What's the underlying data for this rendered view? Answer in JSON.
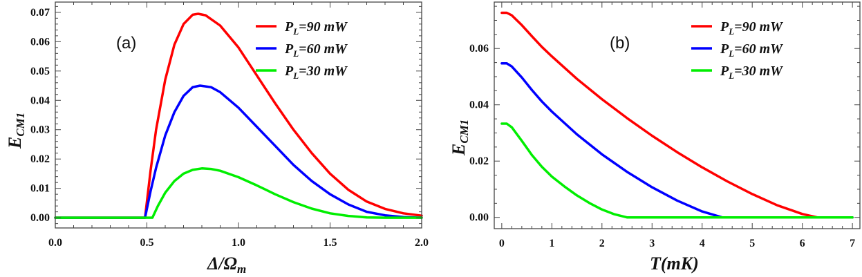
{
  "chart_data": [
    {
      "id": "a",
      "type": "line",
      "panel_label": "(a)",
      "xlabel": "Δ/Ω_m",
      "xlabel_main": "Δ/Ω",
      "xlabel_sub": "m",
      "ylabel": "E_CM1",
      "ylabel_main": "E",
      "ylabel_sub": "CM1",
      "xlim": [
        0,
        2.0
      ],
      "ylim": [
        -0.0035,
        0.0735
      ],
      "xticks": [
        0.0,
        0.5,
        1.0,
        1.5,
        2.0
      ],
      "xtick_labels": [
        "0.0",
        "0.5",
        "1.0",
        "1.5",
        "2.0"
      ],
      "yticks": [
        0.0,
        0.01,
        0.02,
        0.03,
        0.04,
        0.05,
        0.06,
        0.07
      ],
      "ytick_labels": [
        "0.00",
        "0.01",
        "0.02",
        "0.03",
        "0.04",
        "0.05",
        "0.06",
        "0.07"
      ],
      "grid": false,
      "legend_position": "upper right",
      "series": [
        {
          "name": "P_L=90 mW",
          "label_main": "P",
          "label_sub": "L",
          "label_rest": "=90 mW",
          "color": "#ff0000",
          "x": [
            0,
            0.49,
            0.52,
            0.55,
            0.6,
            0.65,
            0.7,
            0.75,
            0.78,
            0.82,
            0.9,
            1.0,
            1.1,
            1.2,
            1.3,
            1.4,
            1.5,
            1.6,
            1.7,
            1.8,
            1.9,
            2.0
          ],
          "y": [
            0,
            0,
            0.016,
            0.03,
            0.047,
            0.059,
            0.066,
            0.0692,
            0.0695,
            0.069,
            0.0655,
            0.058,
            0.0485,
            0.039,
            0.03,
            0.022,
            0.015,
            0.0095,
            0.0055,
            0.003,
            0.0015,
            0.0007
          ]
        },
        {
          "name": "P_L=60 mW",
          "label_main": "P",
          "label_sub": "L",
          "label_rest": "=60 mW",
          "color": "#0000ff",
          "x": [
            0,
            0.49,
            0.52,
            0.55,
            0.6,
            0.65,
            0.7,
            0.75,
            0.79,
            0.85,
            0.9,
            1.0,
            1.1,
            1.2,
            1.3,
            1.4,
            1.5,
            1.6,
            1.7,
            1.8,
            1.9,
            2.0
          ],
          "y": [
            0,
            0,
            0.009,
            0.017,
            0.028,
            0.036,
            0.0415,
            0.0445,
            0.045,
            0.0445,
            0.0428,
            0.0375,
            0.031,
            0.0245,
            0.018,
            0.0125,
            0.008,
            0.0045,
            0.002,
            0.0008,
            0.0002,
            0
          ]
        },
        {
          "name": "P_L=30 mW",
          "label_main": "P",
          "label_sub": "L",
          "label_rest": "=30 mW",
          "color": "#00ee00",
          "x": [
            0,
            0.53,
            0.56,
            0.6,
            0.65,
            0.7,
            0.75,
            0.8,
            0.85,
            0.9,
            1.0,
            1.1,
            1.2,
            1.3,
            1.4,
            1.5,
            1.6,
            1.7,
            1.8,
            1.9,
            2.0
          ],
          "y": [
            0,
            0,
            0.004,
            0.0085,
            0.0125,
            0.015,
            0.0163,
            0.0168,
            0.0166,
            0.016,
            0.0138,
            0.011,
            0.008,
            0.0053,
            0.0031,
            0.0015,
            0.0006,
            0.0001,
            0,
            0,
            0
          ]
        }
      ]
    },
    {
      "id": "b",
      "type": "line",
      "panel_label": "(b)",
      "xlabel": "T(mK)",
      "ylabel": "E_CM1",
      "ylabel_main": "E",
      "ylabel_sub": "CM1",
      "xlim": [
        -0.15,
        7.15
      ],
      "ylim": [
        -0.004,
        0.0765
      ],
      "xticks": [
        0,
        1,
        2,
        3,
        4,
        5,
        6,
        7
      ],
      "xtick_labels": [
        "0",
        "1",
        "2",
        "3",
        "4",
        "5",
        "6",
        "7"
      ],
      "yticks": [
        0.0,
        0.02,
        0.04,
        0.06
      ],
      "ytick_labels": [
        "0.00",
        "0.02",
        "0.04",
        "0.06"
      ],
      "grid": false,
      "legend_position": "upper right",
      "series": [
        {
          "name": "P_L=90 mW",
          "label_main": "P",
          "label_sub": "L",
          "label_rest": "=90 mW",
          "color": "#ff0000",
          "x": [
            0,
            0.1,
            0.2,
            0.4,
            0.6,
            0.8,
            1.0,
            1.5,
            2.0,
            2.5,
            3.0,
            3.5,
            4.0,
            4.5,
            5.0,
            5.5,
            6.0,
            6.3,
            7.0
          ],
          "y": [
            0.0727,
            0.0727,
            0.0718,
            0.0683,
            0.0644,
            0.0606,
            0.0572,
            0.0492,
            0.042,
            0.0353,
            0.029,
            0.0232,
            0.0178,
            0.0128,
            0.0083,
            0.0043,
            0.0012,
            0,
            0
          ]
        },
        {
          "name": "P_L=60 mW",
          "label_main": "P",
          "label_sub": "L",
          "label_rest": "=60 mW",
          "color": "#0000ff",
          "x": [
            0,
            0.1,
            0.2,
            0.4,
            0.6,
            0.8,
            1.0,
            1.5,
            2.0,
            2.5,
            3.0,
            3.5,
            4.0,
            4.4,
            7.0
          ],
          "y": [
            0.0547,
            0.0547,
            0.0536,
            0.0497,
            0.0453,
            0.0412,
            0.0376,
            0.0295,
            0.0224,
            0.0162,
            0.0107,
            0.006,
            0.0021,
            0,
            0
          ]
        },
        {
          "name": "P_L=30 mW",
          "label_main": "P",
          "label_sub": "L",
          "label_rest": "=30 mW",
          "color": "#00ee00",
          "x": [
            0,
            0.1,
            0.2,
            0.4,
            0.6,
            0.8,
            1.0,
            1.25,
            1.5,
            1.75,
            2.0,
            2.25,
            2.5,
            7.0
          ],
          "y": [
            0.0333,
            0.0333,
            0.032,
            0.0272,
            0.0222,
            0.018,
            0.0145,
            0.011,
            0.0078,
            0.0051,
            0.0028,
            0.0011,
            0,
            0
          ]
        }
      ]
    }
  ]
}
